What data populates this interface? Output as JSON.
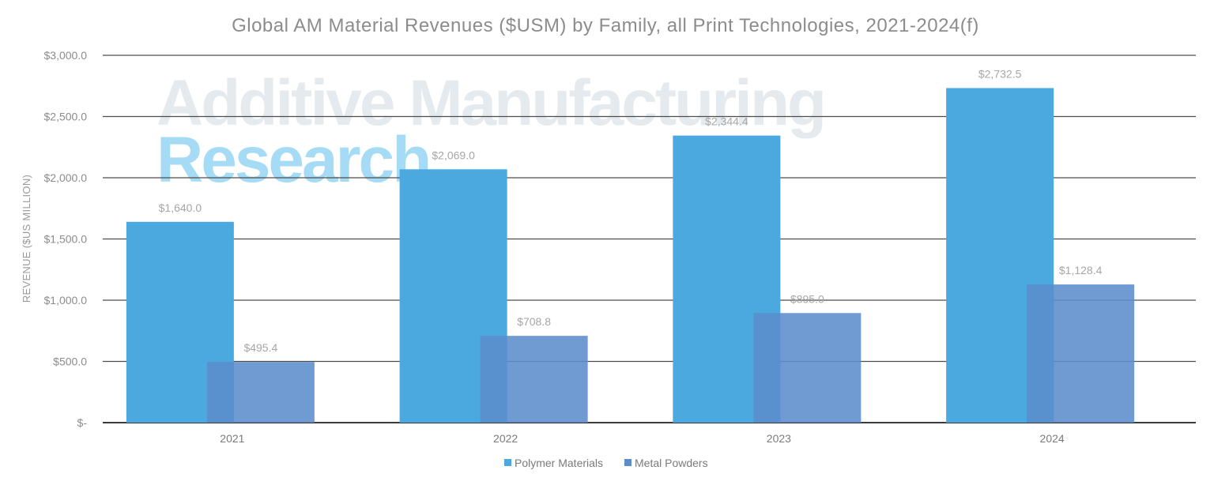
{
  "watermark": {
    "line1": "Additive Manufacturing",
    "line2": "Research"
  },
  "chart_data": {
    "type": "bar",
    "title": "Global AM Material Revenues ($USM) by Family, all Print Technologies, 2021-2024(f)",
    "ylabel": "REVENUE ($US MILLION)",
    "xlabel": "",
    "categories": [
      "2021",
      "2022",
      "2023",
      "2024"
    ],
    "ylim": [
      0,
      3000
    ],
    "yticks": [
      0,
      500,
      1000,
      1500,
      2000,
      2500,
      3000
    ],
    "ytick_labels": [
      "$-",
      "$500.0",
      "$1,000.0",
      "$1,500.0",
      "$2,000.0",
      "$2,500.0",
      "$3,000.0"
    ],
    "grid": true,
    "legend_position": "bottom",
    "series": [
      {
        "name": "Polymer Materials",
        "color": "#4ba9df",
        "values": [
          1640.0,
          2069.0,
          2344.4,
          2732.5
        ],
        "labels": [
          "$1,640.0",
          "$2,069.0",
          "$2,344.4",
          "$2,732.5"
        ]
      },
      {
        "name": "Metal Powders",
        "color": "#5b8ccc",
        "values": [
          495.4,
          708.8,
          895.0,
          1128.4
        ],
        "labels": [
          "$495.4",
          "$708.8",
          "$895.0",
          "$1,128.4"
        ]
      }
    ]
  }
}
